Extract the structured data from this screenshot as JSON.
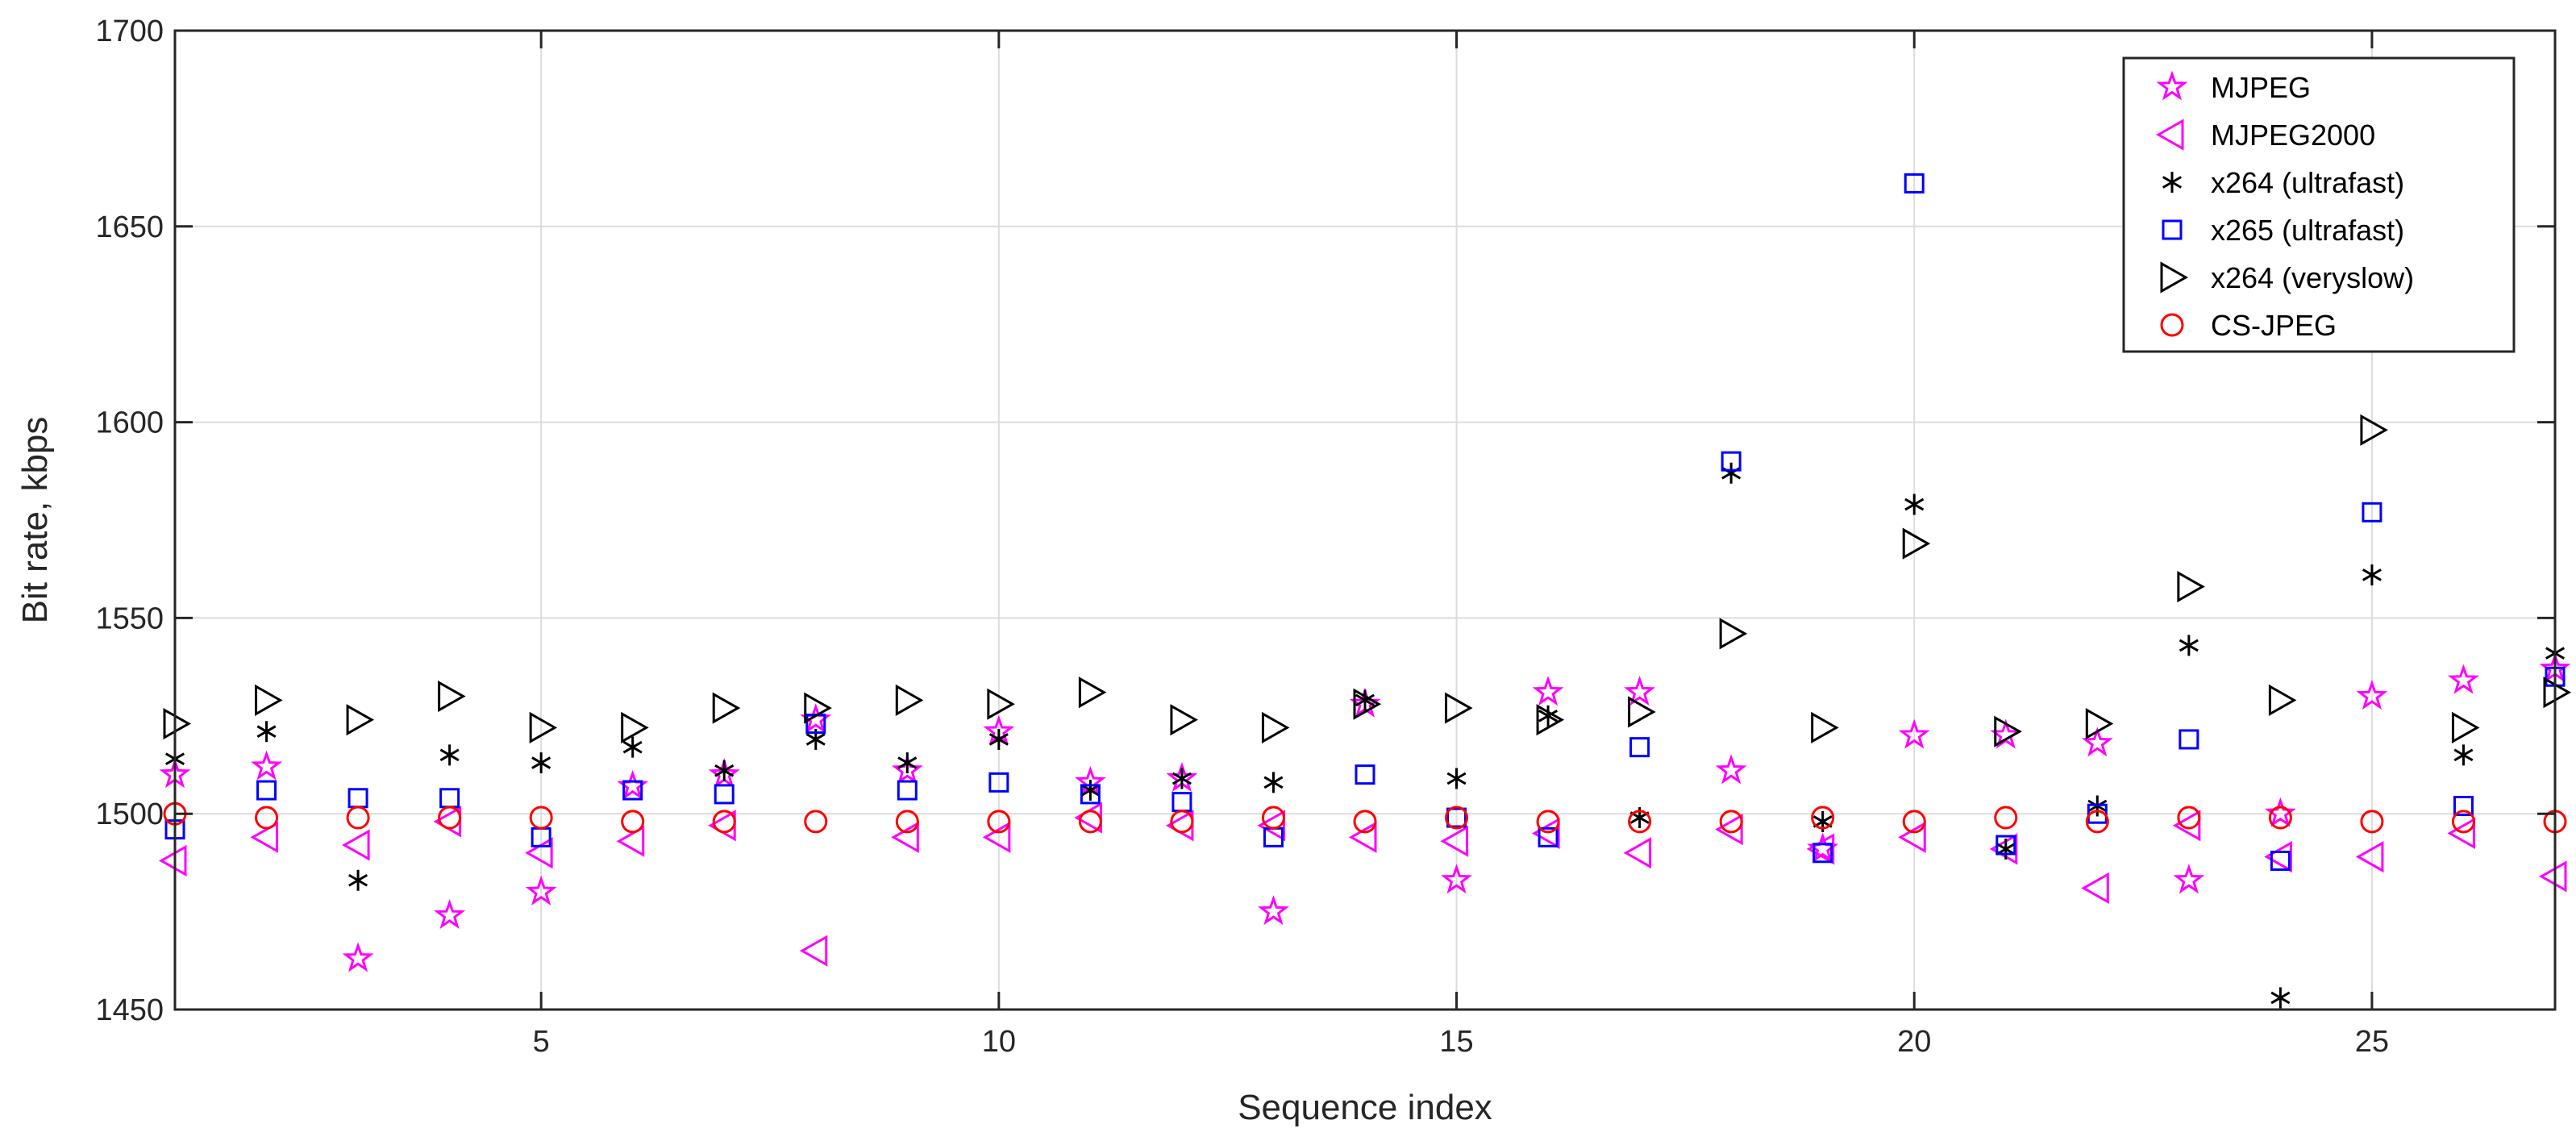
{
  "chart_data": {
    "type": "scatter",
    "title": "",
    "xlabel": "Sequence index",
    "ylabel": "Bit rate, kbps",
    "xlim": [
      1,
      27
    ],
    "ylim": [
      1450,
      1700
    ],
    "xticks": [
      5,
      10,
      15,
      20,
      25
    ],
    "yticks": [
      1450,
      1500,
      1550,
      1600,
      1650,
      1700
    ],
    "grid": true,
    "legend_position": "top-right",
    "x": [
      1,
      2,
      3,
      4,
      5,
      6,
      7,
      8,
      9,
      10,
      11,
      12,
      13,
      14,
      15,
      16,
      17,
      18,
      19,
      20,
      21,
      22,
      23,
      24,
      25,
      26,
      27
    ],
    "series": [
      {
        "name": "MJPEG",
        "marker": "star",
        "color": "#ff00ff",
        "values": [
          1510,
          1512,
          1463,
          1474,
          1480,
          1507,
          1510,
          1524,
          1511,
          1521,
          1508,
          1509,
          1475,
          1528,
          1483,
          1531,
          1531,
          1511,
          1491,
          1520,
          1520,
          1518,
          1483,
          1500,
          1530,
          1534,
          1537
        ]
      },
      {
        "name": "MJPEG2000",
        "marker": "triangle-left",
        "color": "#ff00ff",
        "values": [
          1488,
          1494,
          1492,
          1498,
          1490,
          1493,
          1497,
          1465,
          1494,
          1494,
          1499,
          1497,
          1497,
          1494,
          1493,
          1495,
          1490,
          1496,
          1491,
          1494,
          1491,
          1481,
          1497,
          1489,
          1489,
          1495,
          1484
        ]
      },
      {
        "name": "x264 (ultrafast)",
        "marker": "asterisk",
        "color": "#000000",
        "values": [
          1514,
          1521,
          1483,
          1515,
          1513,
          1517,
          1511,
          1519,
          1513,
          1519,
          1506,
          1509,
          1508,
          1529,
          1509,
          1525,
          1499,
          1587,
          1498,
          1579,
          1491,
          1502,
          1543,
          1453,
          1561,
          1515,
          1541
        ]
      },
      {
        "name": "x265 (ultrafast)",
        "marker": "square",
        "color": "#0000ff",
        "values": [
          1496,
          1506,
          1504,
          1504,
          1494,
          1506,
          1505,
          1523,
          1506,
          1508,
          1505,
          1503,
          1494,
          1510,
          1499,
          1494,
          1517,
          1590,
          1490,
          1661,
          1492,
          1500,
          1519,
          1488,
          1577,
          1502,
          1535
        ]
      },
      {
        "name": "x264 (veryslow)",
        "marker": "triangle-right",
        "color": "#000000",
        "values": [
          1523,
          1529,
          1524,
          1530,
          1522,
          1522,
          1527,
          1527,
          1529,
          1528,
          1531,
          1524,
          1522,
          1528,
          1527,
          1524,
          1526,
          1546,
          1522,
          1569,
          1521,
          1523,
          1558,
          1529,
          1598,
          1522,
          1531
        ]
      },
      {
        "name": "CS-JPEG",
        "marker": "circle",
        "color": "#ff0000",
        "values": [
          1500,
          1499,
          1499,
          1499,
          1499,
          1498,
          1498,
          1498,
          1498,
          1498,
          1498,
          1498,
          1499,
          1498,
          1499,
          1498,
          1498,
          1498,
          1499,
          1498,
          1499,
          1498,
          1499,
          1499,
          1498,
          1498,
          1498
        ]
      }
    ]
  }
}
